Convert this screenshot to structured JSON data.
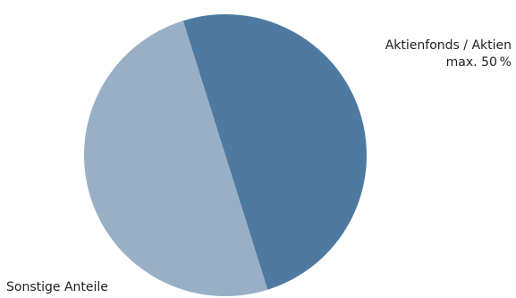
{
  "chart_data": {
    "type": "pie",
    "slices": [
      {
        "label_lines": [
          "Aktienfonds / Aktien",
          "max. 50 %"
        ],
        "value": 50,
        "color": "#4e79a1"
      },
      {
        "label_lines": [
          "Sonstige Anteile"
        ],
        "value": 50,
        "color": "#98afc6"
      }
    ]
  }
}
